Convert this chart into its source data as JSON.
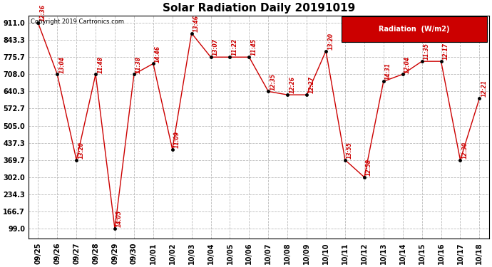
{
  "title": "Solar Radiation Daily 20191019",
  "copyright": "Copyright 2019 Cartronics.com",
  "legend_label": "Radiation  (W/m2)",
  "dates": [
    "09/25",
    "09/26",
    "09/27",
    "09/28",
    "09/29",
    "09/30",
    "10/01",
    "10/02",
    "10/03",
    "10/04",
    "10/05",
    "10/06",
    "10/07",
    "10/08",
    "10/09",
    "10/10",
    "10/11",
    "10/12",
    "10/13",
    "10/14",
    "10/15",
    "10/16",
    "10/17",
    "10/18"
  ],
  "values": [
    911.0,
    708.0,
    370.0,
    708.0,
    99.0,
    708.0,
    750.0,
    412.0,
    870.0,
    775.7,
    775.7,
    775.7,
    640.3,
    627.0,
    627.0,
    800.0,
    370.0,
    302.0,
    680.0,
    708.0,
    759.0,
    759.0,
    370.0,
    613.0
  ],
  "time_labels": [
    "12:36",
    "13:04",
    "13:20",
    "11:48",
    "14:05",
    "11:38",
    "14:46",
    "11:09",
    "13:46",
    "13:07",
    "11:22",
    "11:45",
    "12:35",
    "12:26",
    "12:27",
    "13:20",
    "13:55",
    "12:58",
    "14:31",
    "12:04",
    "11:35",
    "12:17",
    "12:30",
    "12:21"
  ],
  "yticks": [
    99.0,
    166.7,
    234.3,
    302.0,
    369.7,
    437.3,
    505.0,
    572.7,
    640.3,
    708.0,
    775.7,
    843.3,
    911.0
  ],
  "yticklabels": [
    "99.0",
    "166.7",
    "234.3",
    "302.0",
    "369.7",
    "437.3",
    "505.0",
    "572.7",
    "640.3",
    "708.0",
    "775.7",
    "843.3",
    "911.0"
  ],
  "line_color": "#cc0000",
  "marker_color": "#000000",
  "bg_color": "#ffffff",
  "grid_color": "#bbbbbb",
  "legend_bg": "#cc0000",
  "legend_text_color": "#ffffff",
  "title_color": "#000000",
  "annotation_color": "#cc0000",
  "copyright_color": "#000000",
  "figwidth": 6.9,
  "figheight": 3.75,
  "dpi": 100,
  "ylim_min": 59.0,
  "ylim_max": 940.0,
  "title_fontsize": 11,
  "tick_fontsize": 7,
  "annot_fontsize": 5.5,
  "copyright_fontsize": 6,
  "legend_fontsize": 7
}
